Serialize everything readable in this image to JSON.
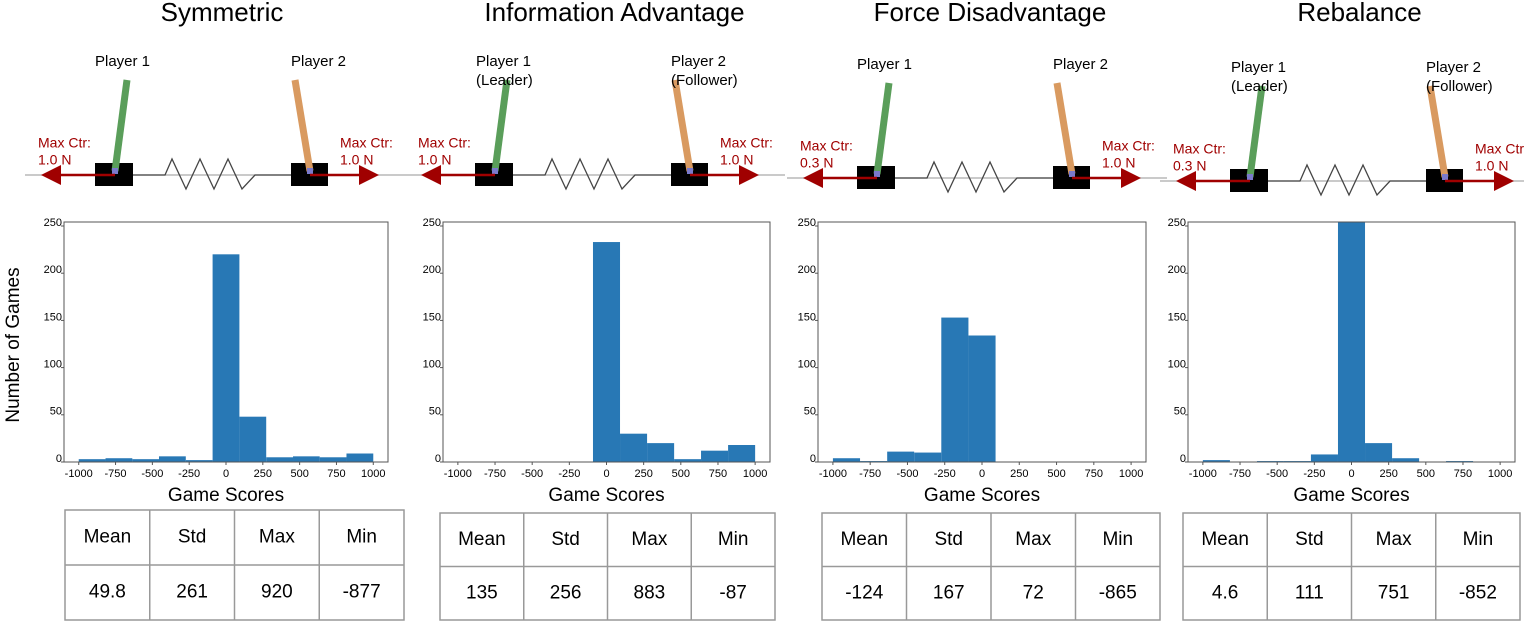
{
  "chart_data": [
    {
      "type": "histogram",
      "title": "Symmetric",
      "xlabel": "Game Scores",
      "ylabel": "Number of Games",
      "color": "#2878b5",
      "bins": [
        -1000,
        -818,
        -636,
        -455,
        -273,
        -91,
        91,
        273,
        455,
        636,
        818,
        1000
      ],
      "values": [
        3,
        4,
        3,
        6,
        2,
        220,
        48,
        5,
        6,
        5,
        9
      ],
      "xlim": [
        -1100,
        1100
      ],
      "ylim": [
        0,
        250
      ],
      "xticks": [
        -1000,
        -750,
        -500,
        -250,
        0,
        250,
        500,
        750,
        1000
      ],
      "yticks": [
        0,
        50,
        100,
        150,
        200,
        250
      ]
    },
    {
      "type": "histogram",
      "title": "Information Advantage",
      "xlabel": "Game Scores",
      "color": "#2878b5",
      "bins": [
        -1000,
        -818,
        -636,
        -455,
        -273,
        -91,
        91,
        273,
        455,
        636,
        818,
        1000
      ],
      "values": [
        0,
        0,
        0,
        0,
        0,
        233,
        30,
        20,
        3,
        12,
        18
      ],
      "xlim": [
        -1100,
        1100
      ],
      "ylim": [
        0,
        250
      ],
      "xticks": [
        -1000,
        -750,
        -500,
        -250,
        0,
        250,
        500,
        750,
        1000
      ],
      "yticks": [
        0,
        50,
        100,
        150,
        200,
        250
      ]
    },
    {
      "type": "histogram",
      "title": "Force Disadvantage",
      "xlabel": "Game Scores",
      "color": "#2878b5",
      "bins": [
        -1000,
        -818,
        -636,
        -455,
        -273,
        -91,
        91,
        273,
        455,
        636,
        818,
        1000
      ],
      "values": [
        4,
        1,
        11,
        10,
        153,
        134,
        0,
        0,
        0,
        0,
        0
      ],
      "xlim": [
        -1100,
        1100
      ],
      "ylim": [
        0,
        250
      ],
      "xticks": [
        -1000,
        -750,
        -500,
        -250,
        0,
        250,
        500,
        750,
        1000
      ],
      "yticks": [
        0,
        50,
        100,
        150,
        200,
        250
      ]
    },
    {
      "type": "histogram",
      "title": "Rebalance",
      "xlabel": "Game Scores",
      "color": "#2878b5",
      "bins": [
        -1000,
        -818,
        -636,
        -455,
        -273,
        -91,
        91,
        273,
        455,
        636,
        818,
        1000
      ],
      "values": [
        2,
        0,
        1,
        1,
        8,
        262,
        20,
        4,
        0,
        1,
        0
      ],
      "xlim": [
        -1100,
        1100
      ],
      "ylim": [
        0,
        250
      ],
      "xticks": [
        -1000,
        -750,
        -500,
        -250,
        0,
        250,
        500,
        750,
        1000
      ],
      "yticks": [
        0,
        50,
        100,
        150,
        200,
        250
      ]
    }
  ],
  "panels": [
    {
      "diagram": {
        "player1": [
          "Player 1"
        ],
        "player2": [
          "Player 2"
        ],
        "left_force": [
          "Max Ctr:",
          "1.0 N"
        ],
        "right_force": [
          "Max Ctr:",
          "1.0 N"
        ]
      },
      "table": {
        "header": [
          "Mean",
          "Std",
          "Max",
          "Min"
        ],
        "row": [
          49.8,
          261,
          920,
          -877
        ]
      }
    },
    {
      "diagram": {
        "player1": [
          "Player 1",
          "(Leader)"
        ],
        "player2": [
          "Player 2",
          "(Follower)"
        ],
        "left_force": [
          "Max Ctr:",
          "1.0 N"
        ],
        "right_force": [
          "Max Ctr:",
          "1.0 N"
        ]
      },
      "table": {
        "header": [
          "Mean",
          "Std",
          "Max",
          "Min"
        ],
        "row": [
          135,
          256,
          883,
          -87
        ]
      }
    },
    {
      "diagram": {
        "player1": [
          "Player 1"
        ],
        "player2": [
          "Player 2"
        ],
        "left_force": [
          "Max Ctr:",
          "0.3 N"
        ],
        "right_force": [
          "Max Ctr:",
          "1.0 N"
        ]
      },
      "table": {
        "header": [
          "Mean",
          "Std",
          "Max",
          "Min"
        ],
        "row": [
          -124,
          167,
          72,
          -865
        ]
      }
    },
    {
      "diagram": {
        "player1": [
          "Player 1",
          "(Leader)"
        ],
        "player2": [
          "Player 2",
          "(Follower)"
        ],
        "left_force": [
          "Max Ctr:",
          "0.3 N"
        ],
        "right_force": [
          "Max Ctr:",
          "1.0 N"
        ]
      },
      "table": {
        "header": [
          "Mean",
          "Std",
          "Max",
          "Min"
        ],
        "row": [
          4.6,
          111,
          751,
          -852
        ]
      }
    }
  ]
}
